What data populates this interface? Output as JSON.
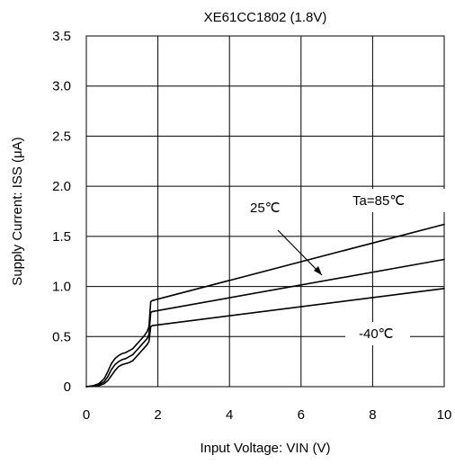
{
  "chart_data": {
    "type": "line",
    "title": "XE61CC1802 (1.8V)",
    "xlabel": "Input Voltage:  VIN (V)",
    "ylabel": "Supply Current:   ISS (μA)",
    "xlim": [
      0,
      10
    ],
    "ylim": [
      0,
      3.5
    ],
    "x_ticks": [
      "0",
      "2",
      "4",
      "6",
      "8",
      "10"
    ],
    "y_ticks": [
      "0",
      "0.5",
      "1.0",
      "1.5",
      "2.0",
      "2.5",
      "3.0",
      "3.5"
    ],
    "grid": true,
    "annotations": {
      "ta85": "Ta=85℃",
      "ta25": "25℃",
      "tam40": "-40℃"
    },
    "series": [
      {
        "name": "Ta=85℃",
        "x": [
          0,
          0.2,
          0.35,
          0.5,
          0.6,
          0.7,
          0.8,
          0.9,
          1.0,
          1.1,
          1.2,
          1.3,
          1.4,
          1.5,
          1.6,
          1.7,
          1.75,
          1.8,
          1.85,
          10
        ],
        "y": [
          0,
          0.01,
          0.03,
          0.08,
          0.15,
          0.23,
          0.28,
          0.31,
          0.33,
          0.34,
          0.36,
          0.38,
          0.42,
          0.46,
          0.5,
          0.55,
          0.6,
          0.85,
          0.86,
          1.62
        ]
      },
      {
        "name": "25℃",
        "x": [
          0,
          0.2,
          0.35,
          0.5,
          0.6,
          0.7,
          0.8,
          0.9,
          1.0,
          1.1,
          1.2,
          1.3,
          1.4,
          1.5,
          1.6,
          1.7,
          1.75,
          1.8,
          1.85,
          10
        ],
        "y": [
          0,
          0.01,
          0.02,
          0.05,
          0.1,
          0.17,
          0.22,
          0.25,
          0.27,
          0.28,
          0.3,
          0.32,
          0.36,
          0.4,
          0.44,
          0.48,
          0.52,
          0.74,
          0.75,
          1.27
        ]
      },
      {
        "name": "-40℃",
        "x": [
          0,
          0.2,
          0.35,
          0.5,
          0.6,
          0.7,
          0.8,
          0.9,
          1.0,
          1.1,
          1.2,
          1.3,
          1.4,
          1.5,
          1.6,
          1.7,
          1.75,
          1.8,
          1.85,
          10
        ],
        "y": [
          0,
          0.005,
          0.01,
          0.03,
          0.06,
          0.11,
          0.16,
          0.2,
          0.22,
          0.23,
          0.24,
          0.26,
          0.3,
          0.34,
          0.38,
          0.42,
          0.45,
          0.6,
          0.61,
          0.98
        ]
      }
    ]
  }
}
